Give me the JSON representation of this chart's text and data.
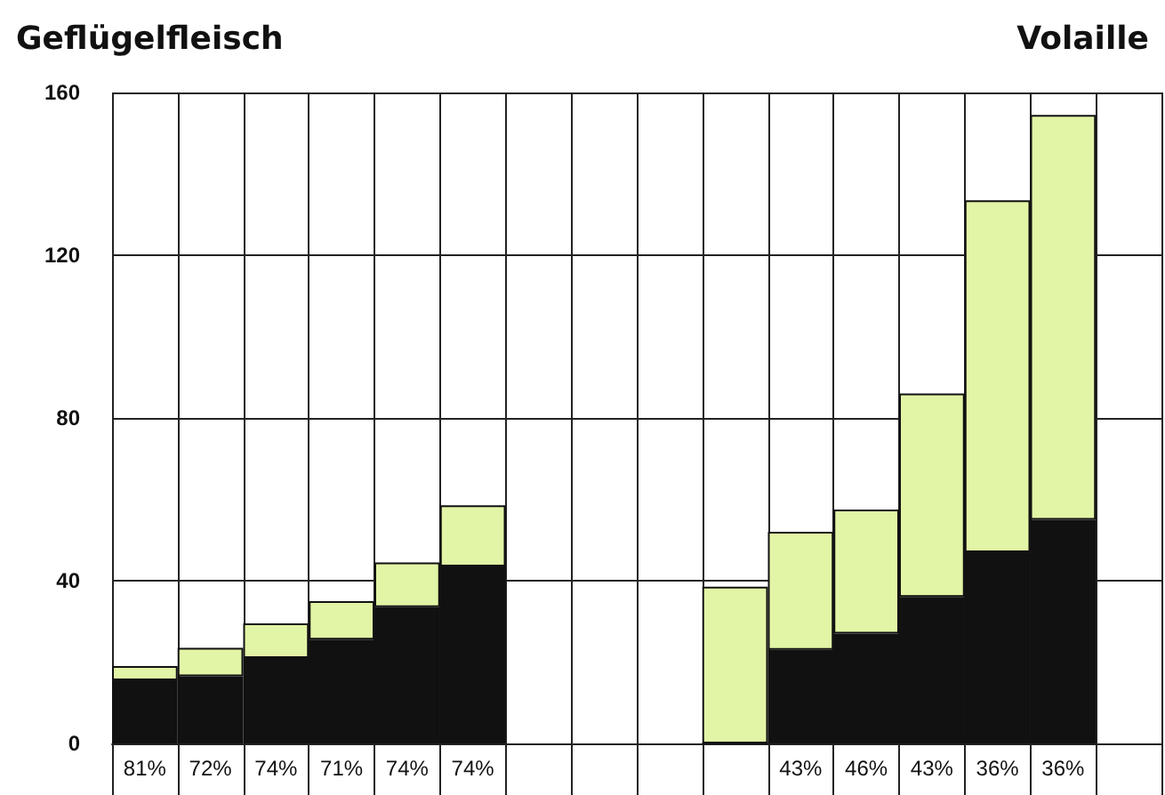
{
  "chart_data": {
    "type": "bar",
    "title": "Geflügelfleisch",
    "annotations": [
      "Volaille"
    ],
    "categories": [
      "81%",
      "72%",
      "74%",
      "71%",
      "74%",
      "74%",
      null,
      null,
      null,
      null,
      "43%",
      "46%",
      "43%",
      "36%",
      "36%",
      null
    ],
    "series": [
      {
        "color": "#111111",
        "values": [
          15.5,
          16.5,
          21,
          25.5,
          33.5,
          43.5,
          null,
          null,
          null,
          0,
          23,
          27,
          36,
          47,
          55,
          null
        ]
      },
      {
        "color": "#e2f5a6",
        "values": [
          3.5,
          7,
          8.5,
          9.5,
          11,
          15,
          null,
          null,
          null,
          38.5,
          29,
          30.5,
          50,
          86.5,
          99.5,
          null
        ]
      }
    ],
    "stacked": true,
    "ylim": [
      0,
      160
    ],
    "yticks": [
      0,
      40,
      80,
      120,
      160
    ],
    "grid": true
  }
}
